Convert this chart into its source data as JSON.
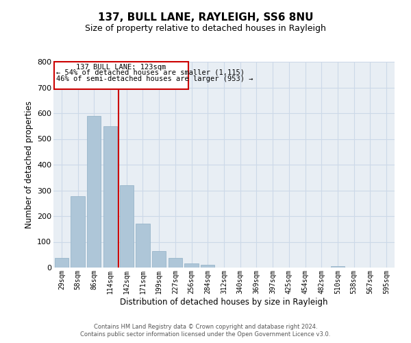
{
  "title": "137, BULL LANE, RAYLEIGH, SS6 8NU",
  "subtitle": "Size of property relative to detached houses in Rayleigh",
  "xlabel": "Distribution of detached houses by size in Rayleigh",
  "ylabel": "Number of detached properties",
  "footnote1": "Contains HM Land Registry data © Crown copyright and database right 2024.",
  "footnote2": "Contains public sector information licensed under the Open Government Licence v3.0.",
  "bin_labels": [
    "29sqm",
    "58sqm",
    "86sqm",
    "114sqm",
    "142sqm",
    "171sqm",
    "199sqm",
    "227sqm",
    "256sqm",
    "284sqm",
    "312sqm",
    "340sqm",
    "369sqm",
    "397sqm",
    "425sqm",
    "454sqm",
    "482sqm",
    "510sqm",
    "538sqm",
    "567sqm",
    "595sqm"
  ],
  "bar_values": [
    38,
    278,
    590,
    550,
    320,
    170,
    65,
    38,
    15,
    10,
    0,
    0,
    0,
    0,
    0,
    0,
    0,
    5,
    0,
    0,
    0
  ],
  "bar_color": "#aec6d8",
  "bar_edgecolor": "#8fafc4",
  "vline_color": "#cc0000",
  "vline_x": 3.5,
  "ylim": [
    0,
    800
  ],
  "yticks": [
    0,
    100,
    200,
    300,
    400,
    500,
    600,
    700,
    800
  ],
  "annotation_title": "137 BULL LANE: 123sqm",
  "annotation_line1": "← 54% of detached houses are smaller (1,115)",
  "annotation_line2": "46% of semi-detached houses are larger (953) →",
  "annotation_box_color": "#cc0000",
  "grid_color": "#ccd9e8",
  "background_color": "#e8eef4",
  "title_fontsize": 11,
  "subtitle_fontsize": 9
}
